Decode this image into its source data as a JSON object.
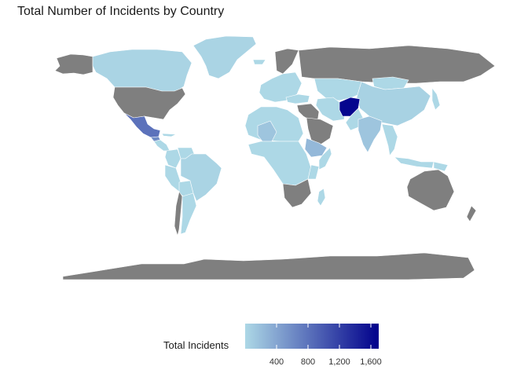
{
  "title": "Total Number of Incidents by Country",
  "colors": {
    "no_data": "#7f7f7f",
    "low": "#add8e6",
    "high": "#00008b",
    "border": "#ffffff"
  },
  "legend": {
    "title": "Total Incidents",
    "min": 0,
    "max": 1700,
    "ticks": [
      {
        "value": 400,
        "label": "400"
      },
      {
        "value": 800,
        "label": "800"
      },
      {
        "value": 1200,
        "label": "1,200"
      },
      {
        "value": 1600,
        "label": "1,600"
      }
    ]
  },
  "chart_data": {
    "type": "choropleth",
    "title": "Total Number of Incidents by Country",
    "legend_title": "Total Incidents",
    "scale": {
      "low": "#add8e6",
      "high": "#00008b",
      "min": 0,
      "max": 1700
    },
    "no_data_color": "#7f7f7f",
    "countries": [
      {
        "name": "Afghanistan",
        "value": 1650
      },
      {
        "name": "Mexico",
        "value": 800
      },
      {
        "name": "Guatemala",
        "value": 600
      },
      {
        "name": "Ethiopia",
        "value": 250
      },
      {
        "name": "Mali",
        "value": 150
      },
      {
        "name": "India",
        "value": 150
      },
      {
        "name": "Canada",
        "value": 30
      },
      {
        "name": "Greenland",
        "value": 30
      },
      {
        "name": "Brazil",
        "value": 30
      },
      {
        "name": "China",
        "value": 50
      }
    ]
  }
}
